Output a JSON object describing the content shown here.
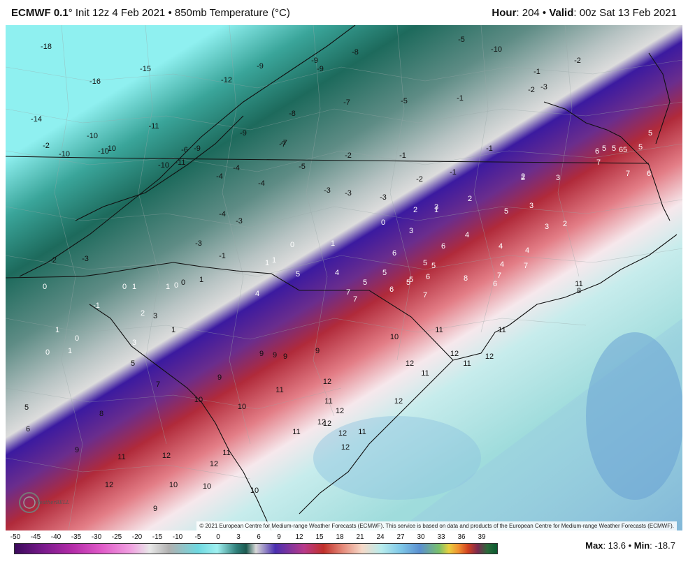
{
  "header": {
    "model": "ECMWF 0.1",
    "init_prefix": "° Init 12z 4 Feb 2021 • 850mb Temperature (°C)",
    "hour_label": "Hour",
    "hour_value": ": 204 • ",
    "valid_label": "Valid",
    "valid_value": ": 00z Sat 13 Feb 2021"
  },
  "copyright": "© 2021 European Centre for Medium-range Weather Forecasts (ECMWF). This service is based on data and products of the European Centre for Medium-range Weather Forecasts (ECMWF).",
  "logo_text": "WeatherBELL",
  "colorbar": {
    "ticks": [
      "-50",
      "-45",
      "-40",
      "-35",
      "-30",
      "-25",
      "-20",
      "-15",
      "-10",
      "-5",
      "0",
      "3",
      "6",
      "9",
      "12",
      "15",
      "18",
      "21",
      "24",
      "27",
      "30",
      "33",
      "36",
      "39"
    ]
  },
  "stats": {
    "max_label": "Max",
    "max_value": ": 13.6 • ",
    "min_label": "Min",
    "min_value": ": -18.7"
  },
  "map_labels": {
    "cold": [
      "-18",
      "-15",
      "-16",
      "-14",
      "-11",
      "-12",
      "-10",
      "-10",
      "-10",
      "-10",
      "-9",
      "-9",
      "-8",
      "-9",
      "-8",
      "-7",
      "-5",
      "-9",
      "-7",
      "-5",
      "-10",
      "-6",
      "-4",
      "-4",
      "-5",
      "-3",
      "-3",
      "-3",
      "-2",
      "-4",
      "-1",
      "-1",
      "-1",
      "-2",
      "-2",
      "-1",
      "-2",
      "-1",
      "-3",
      "-4",
      "-9",
      "-11",
      "-10",
      "-7",
      "-3",
      "-2",
      "-3",
      "-1",
      "-3",
      "-2"
    ],
    "mid": [
      "0",
      "0",
      "1",
      "1",
      "0",
      "1",
      "0",
      "1",
      "0",
      "-1",
      "2",
      "2",
      "3",
      "2",
      "1",
      "3",
      "2",
      "3",
      "1",
      "0",
      "0",
      "2",
      "1",
      "1",
      "3",
      "4",
      "5",
      "4",
      "5",
      "5",
      "6",
      "6",
      "4",
      "5",
      "3",
      "2",
      "4",
      "4",
      "4",
      "3",
      "5",
      "5",
      "5",
      "5",
      "5",
      "6",
      "6",
      "6",
      "7",
      "7",
      "6",
      "5",
      "6",
      "5",
      "5",
      "5",
      "7",
      "7",
      "7",
      "8",
      "6",
      "7",
      "7"
    ],
    "warm": [
      "8",
      "9",
      "9",
      "9",
      "9",
      "9",
      "10",
      "10",
      "10",
      "11",
      "11",
      "11",
      "12",
      "11",
      "12",
      "11",
      "12",
      "12",
      "11",
      "12",
      "11",
      "11",
      "12",
      "12",
      "12",
      "11",
      "12",
      "12",
      "12",
      "11",
      "12",
      "11",
      "12",
      "10",
      "10",
      "10",
      "9",
      "9",
      "5",
      "6",
      "1",
      "0",
      "3",
      "1",
      "5",
      "7",
      "8"
    ]
  }
}
